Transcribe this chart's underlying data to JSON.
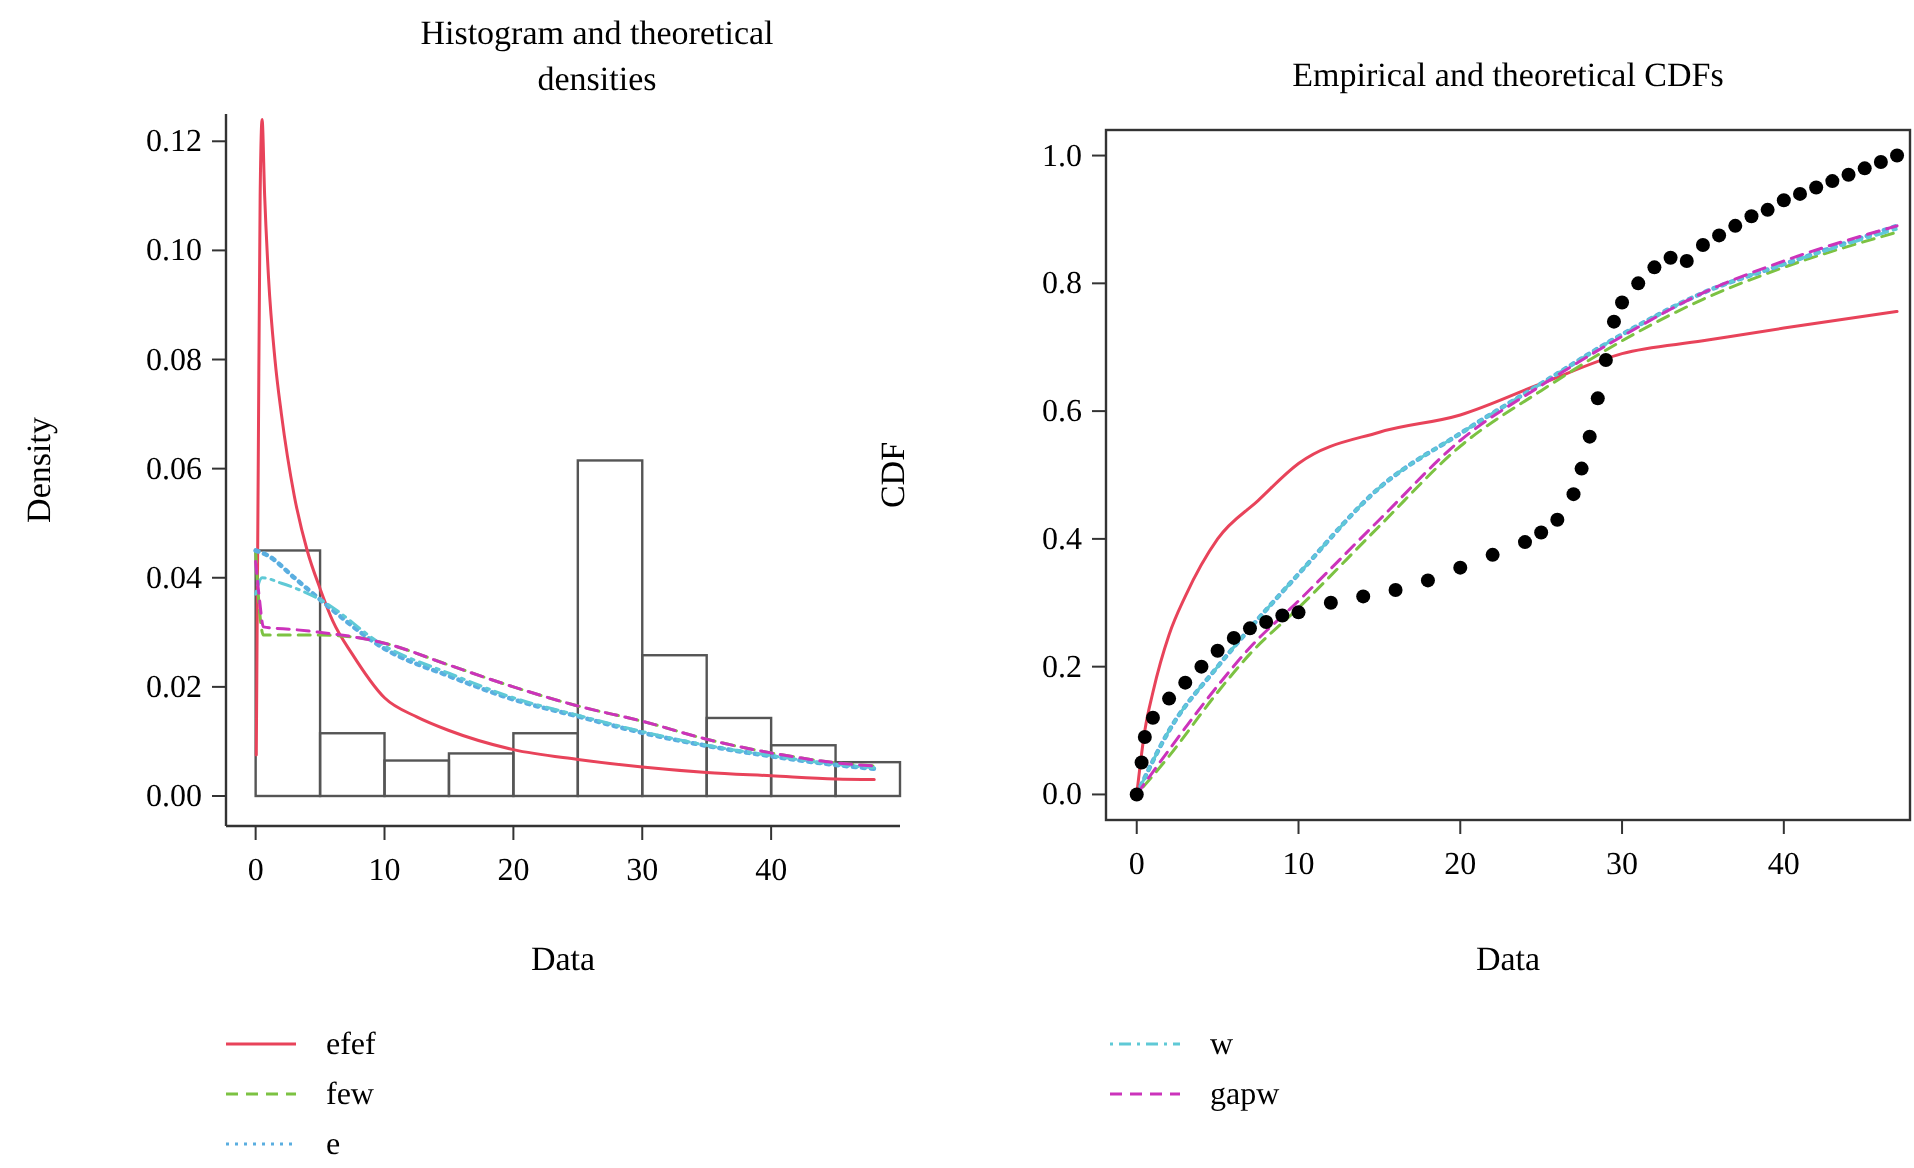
{
  "chart_data": [
    {
      "type": "histogram",
      "title": "Histogram and theoretical densities",
      "xlabel": "Data",
      "ylabel": "Density",
      "color": "#555555",
      "bins": [
        0,
        5,
        10,
        15,
        20,
        25,
        30,
        35,
        40,
        45,
        50
      ],
      "values": [
        0.045,
        0.0115,
        0.0065,
        0.0078,
        0.0115,
        0.0615,
        0.0258,
        0.0143,
        0.0093,
        0.0062
      ],
      "xlim": [
        -2.3,
        50
      ],
      "ylim": [
        -0.0055,
        0.125
      ],
      "xticks": [
        0,
        10,
        20,
        30,
        40
      ],
      "yticks": [
        {
          "value": 0,
          "label": "0.00"
        },
        {
          "value": 0.02,
          "label": "0.02"
        },
        {
          "value": 0.04,
          "label": "0.04"
        },
        {
          "value": 0.06,
          "label": "0.06"
        },
        {
          "value": 0.08,
          "label": "0.08"
        },
        {
          "value": 0.1,
          "label": "0.10"
        },
        {
          "value": 0.12,
          "label": "0.12"
        }
      ],
      "legend": "bottom",
      "series": [
        {
          "type": "line",
          "name": "efef",
          "color": "#e8435a",
          "line_style": "solid",
          "x": [
            0.05,
            0.2,
            0.35,
            0.5,
            0.7,
            1,
            1.5,
            2,
            3,
            4,
            5,
            6,
            7.5,
            10,
            12.5,
            15,
            20,
            25,
            30,
            35,
            40,
            45,
            48
          ],
          "values": [
            0.0075,
            0.06,
            0.11,
            0.124,
            0.11,
            0.095,
            0.08,
            0.07,
            0.055,
            0.045,
            0.038,
            0.032,
            0.026,
            0.018,
            0.0145,
            0.012,
            0.0085,
            0.0067,
            0.0053,
            0.0043,
            0.0037,
            0.0031,
            0.003
          ]
        },
        {
          "type": "line",
          "name": "few",
          "color": "#7cc242",
          "line_style": "dashed",
          "x": [
            0,
            0.3,
            0.6,
            3,
            5,
            8,
            10,
            15,
            20,
            25,
            30,
            35,
            40,
            45,
            48
          ],
          "values": [
            0.045,
            0.034,
            0.0295,
            0.0295,
            0.0295,
            0.029,
            0.028,
            0.024,
            0.02,
            0.0165,
            0.0137,
            0.0104,
            0.0079,
            0.0061,
            0.0055
          ]
        },
        {
          "type": "line",
          "name": "e",
          "color": "#5aaee0",
          "line_style": "dotted",
          "x": [
            0,
            1,
            3,
            5,
            10,
            15,
            20,
            25,
            30,
            35,
            40,
            45,
            48
          ],
          "values": [
            0.045,
            0.044,
            0.04,
            0.036,
            0.027,
            0.022,
            0.0177,
            0.0146,
            0.0116,
            0.0092,
            0.0073,
            0.0057,
            0.005
          ]
        },
        {
          "type": "line",
          "name": "w",
          "color": "#5fc9d6",
          "line_style": "dashdot",
          "x": [
            0,
            0.5,
            2,
            5,
            10,
            15,
            20,
            25,
            30,
            35,
            40,
            45,
            48
          ],
          "values": [
            0.037,
            0.04,
            0.039,
            0.036,
            0.0275,
            0.0225,
            0.018,
            0.0148,
            0.0118,
            0.0093,
            0.0074,
            0.0058,
            0.0052
          ]
        },
        {
          "type": "line",
          "name": "gapw",
          "color": "#cc33bb",
          "line_style": "dashed",
          "x": [
            0,
            0.3,
            0.6,
            3,
            5,
            8,
            10,
            15,
            20,
            25,
            30,
            35,
            40,
            45,
            48
          ],
          "values": [
            0.043,
            0.036,
            0.031,
            0.0305,
            0.03,
            0.029,
            0.028,
            0.024,
            0.02,
            0.0165,
            0.0137,
            0.0104,
            0.0079,
            0.0061,
            0.0055
          ]
        }
      ]
    },
    {
      "type": "line",
      "title": "Empirical and theoretical CDFs",
      "xlabel": "Data",
      "ylabel": "CDF",
      "xlim": [
        -1.9,
        47.8
      ],
      "ylim": [
        -0.04,
        1.04
      ],
      "xticks": [
        0,
        10,
        20,
        30,
        40
      ],
      "yticks": [
        {
          "value": 0,
          "label": "0.0"
        },
        {
          "value": 0.2,
          "label": "0.2"
        },
        {
          "value": 0.4,
          "label": "0.4"
        },
        {
          "value": 0.6,
          "label": "0.6"
        },
        {
          "value": 0.8,
          "label": "0.8"
        },
        {
          "value": 1,
          "label": "1.0"
        }
      ],
      "series": [
        {
          "type": "line",
          "color": "#e8435a",
          "line_style": "solid",
          "x": [
            0,
            0.5,
            1,
            2,
            3,
            5,
            7.5,
            10,
            15,
            20,
            25,
            30,
            35,
            40,
            47
          ],
          "values": [
            0,
            0.1,
            0.16,
            0.25,
            0.31,
            0.4,
            0.46,
            0.518,
            0.567,
            0.594,
            0.643,
            0.69,
            0.71,
            0.73,
            0.756
          ]
        },
        {
          "type": "line",
          "color": "#7cc242",
          "line_style": "dashed",
          "x": [
            0,
            2,
            5,
            7,
            10,
            15,
            20,
            25,
            30,
            35,
            40,
            47
          ],
          "values": [
            0,
            0.06,
            0.16,
            0.22,
            0.292,
            0.42,
            0.545,
            0.632,
            0.71,
            0.775,
            0.825,
            0.88
          ]
        },
        {
          "type": "line",
          "color": "#5aaee0",
          "line_style": "dotted",
          "x": [
            0,
            2,
            5,
            7,
            10,
            15,
            20,
            25,
            30,
            35,
            40,
            47
          ],
          "values": [
            0,
            0.1,
            0.2,
            0.26,
            0.345,
            0.48,
            0.565,
            0.643,
            0.72,
            0.785,
            0.83,
            0.89
          ]
        },
        {
          "type": "line",
          "color": "#5fc9d6",
          "line_style": "dashdot",
          "x": [
            0,
            2,
            5,
            7,
            10,
            15,
            20,
            25,
            30,
            35,
            40,
            47
          ],
          "values": [
            0,
            0.1,
            0.2,
            0.26,
            0.345,
            0.48,
            0.565,
            0.643,
            0.72,
            0.785,
            0.83,
            0.885
          ]
        },
        {
          "type": "line",
          "color": "#cc33bb",
          "line_style": "dashed",
          "x": [
            0,
            2,
            5,
            7,
            10,
            15,
            20,
            25,
            30,
            35,
            40,
            47
          ],
          "values": [
            0,
            0.07,
            0.17,
            0.23,
            0.303,
            0.43,
            0.554,
            0.64,
            0.717,
            0.785,
            0.835,
            0.89
          ]
        },
        {
          "type": "scatter",
          "color": "#000000",
          "marker": "circle",
          "x": [
            0,
            0.3,
            0.5,
            1,
            2,
            3,
            4,
            5,
            6,
            7,
            8,
            9,
            10,
            12,
            14,
            16,
            18,
            20,
            22,
            24,
            25,
            26,
            27,
            27.5,
            28,
            28.5,
            29,
            29.5,
            30,
            31,
            32,
            33,
            34,
            35,
            36,
            37,
            38,
            39,
            40,
            41,
            42,
            43,
            44,
            45,
            46,
            47
          ],
          "values": [
            0,
            0.05,
            0.09,
            0.12,
            0.15,
            0.175,
            0.2,
            0.225,
            0.245,
            0.26,
            0.27,
            0.28,
            0.285,
            0.3,
            0.31,
            0.32,
            0.335,
            0.355,
            0.375,
            0.395,
            0.41,
            0.43,
            0.47,
            0.51,
            0.56,
            0.62,
            0.68,
            0.74,
            0.77,
            0.8,
            0.825,
            0.84,
            0.835,
            0.86,
            0.875,
            0.89,
            0.905,
            0.915,
            0.93,
            0.94,
            0.95,
            0.96,
            0.97,
            0.98,
            0.99,
            1.0
          ]
        }
      ]
    }
  ]
}
